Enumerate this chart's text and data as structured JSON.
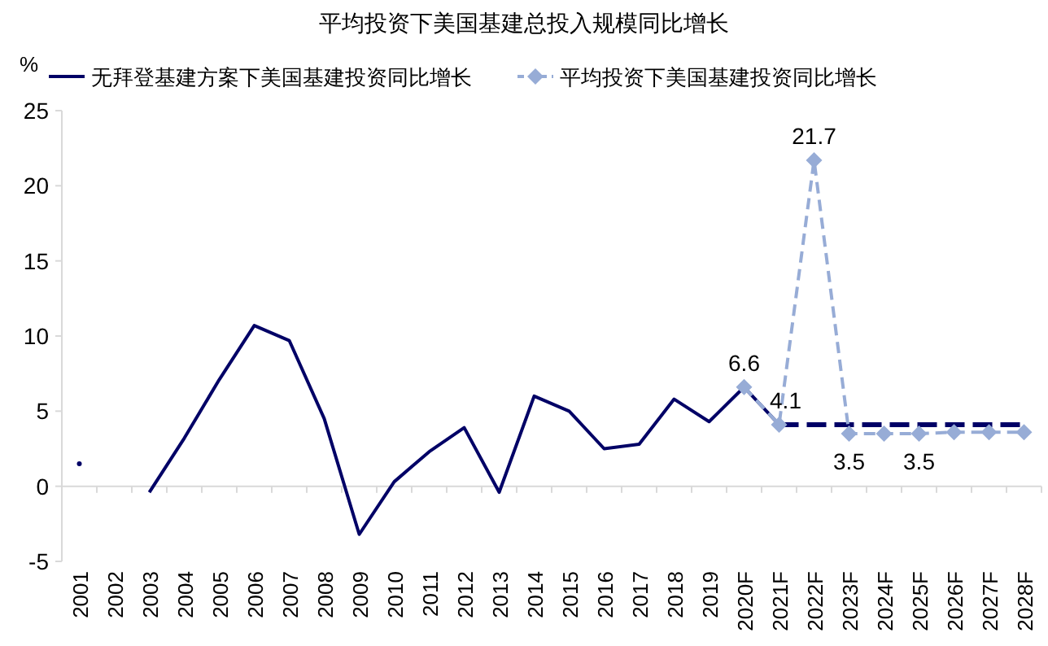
{
  "chart_data": {
    "type": "line",
    "title": "平均投资下美国基建总投入规模同比增长",
    "ylabel": "%",
    "legend": "top",
    "categories": [
      "2001",
      "2002",
      "2003",
      "2004",
      "2005",
      "2006",
      "2007",
      "2008",
      "2009",
      "2010",
      "2011",
      "2012",
      "2013",
      "2014",
      "2015",
      "2016",
      "2017",
      "2018",
      "2019",
      "2020F",
      "2021F",
      "2022F",
      "2023F",
      "2024F",
      "2025F",
      "2026F",
      "2027F",
      "2028F"
    ],
    "ylim": [
      -5,
      25
    ],
    "yticks": [
      -5,
      0,
      5,
      10,
      15,
      20,
      25
    ],
    "series": [
      {
        "name": "无拜登基建方案下美国基建投资同比增长",
        "color": "#000066",
        "line_style": "solid",
        "marker": "none",
        "values": [
          1.5,
          null,
          -0.4,
          3.2,
          7.1,
          10.7,
          9.7,
          4.5,
          -3.2,
          0.3,
          2.3,
          3.9,
          -0.4,
          6.0,
          5.0,
          2.5,
          2.8,
          5.8,
          4.3,
          6.6,
          4.1,
          null,
          null,
          null,
          null,
          null,
          null,
          null
        ]
      },
      {
        "color": "#000066",
        "line_style": "dashed",
        "marker": "none",
        "values": [
          null,
          null,
          null,
          null,
          null,
          null,
          null,
          null,
          null,
          null,
          null,
          null,
          null,
          null,
          null,
          null,
          null,
          null,
          null,
          null,
          4.1,
          4.1,
          4.1,
          4.1,
          4.1,
          4.1,
          4.1,
          4.1
        ]
      },
      {
        "name": "平均投资下美国基建投资同比增长",
        "color": "#97acd6",
        "line_style": "dashed",
        "marker": "diamond",
        "values": [
          null,
          null,
          null,
          null,
          null,
          null,
          null,
          null,
          null,
          null,
          null,
          null,
          null,
          null,
          null,
          null,
          null,
          null,
          null,
          6.6,
          4.1,
          21.7,
          3.5,
          3.5,
          3.5,
          3.6,
          3.6,
          3.6
        ],
        "value_labels": [
          null,
          null,
          null,
          null,
          null,
          null,
          null,
          null,
          null,
          null,
          null,
          null,
          null,
          null,
          null,
          null,
          null,
          null,
          null,
          "6.6",
          "4.1",
          "21.7",
          "3.5",
          null,
          "3.5",
          null,
          null,
          null
        ]
      }
    ]
  }
}
